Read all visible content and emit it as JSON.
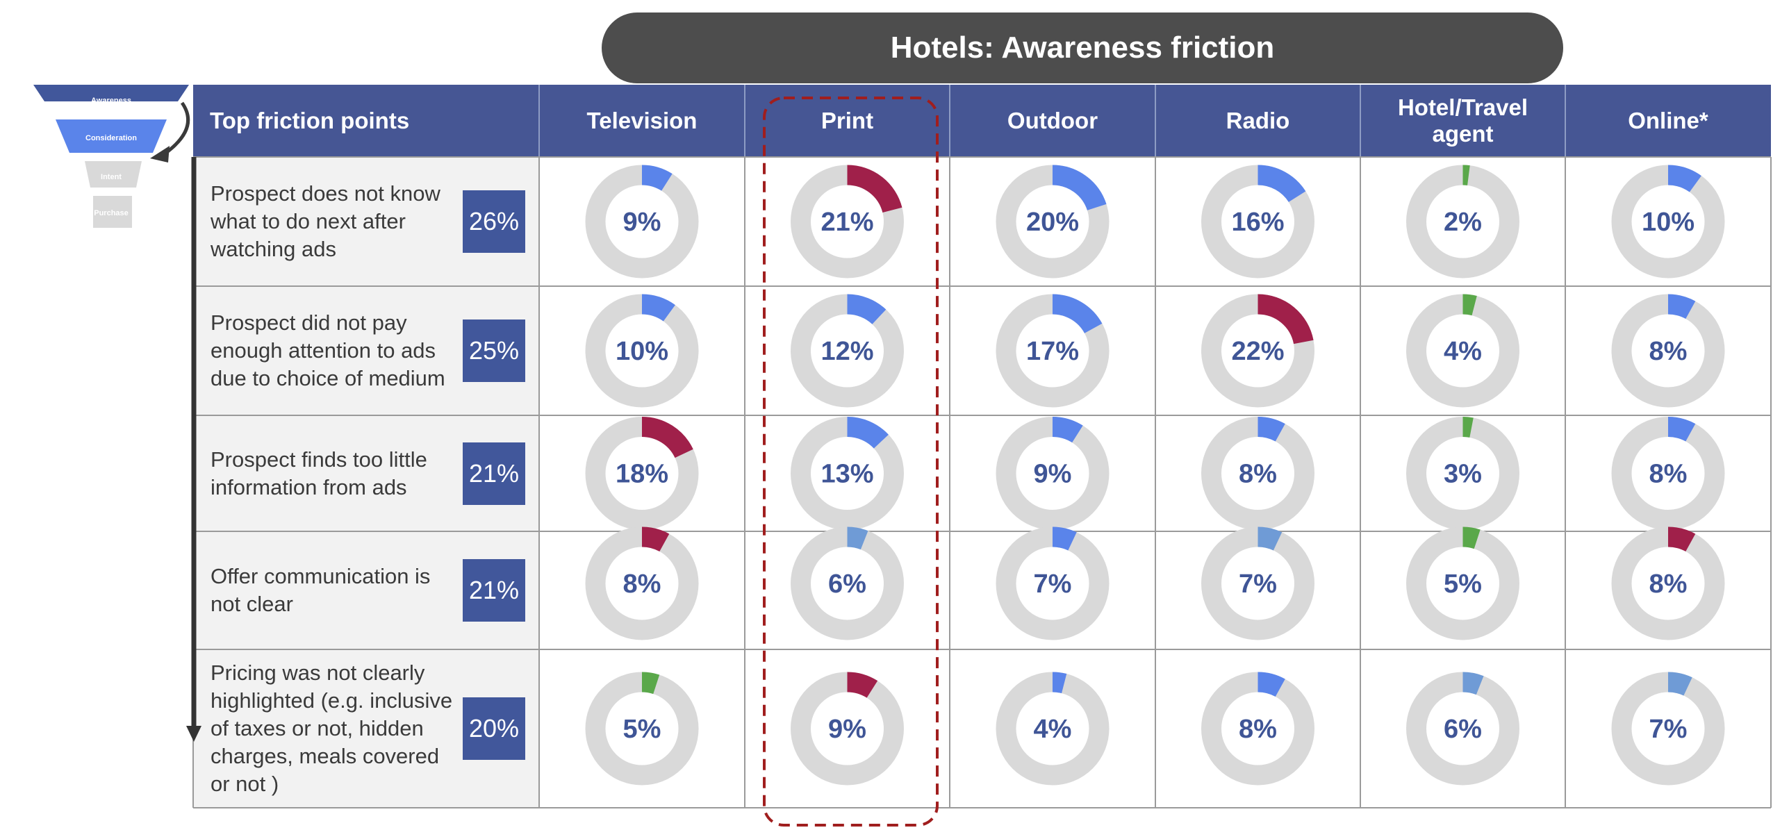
{
  "title": "Hotels: Awareness friction",
  "funnel": {
    "stages": [
      "Awareness",
      "Consideration",
      "Intent",
      "Purchase"
    ],
    "colors": [
      "#41579b",
      "#5a84ea",
      "#d9d9d9",
      "#d9d9d9"
    ]
  },
  "columns": [
    "Top friction points",
    "Television",
    "Print",
    "Outdoor",
    "Radio",
    "Hotel/Travel agent",
    "Online*"
  ],
  "colors": {
    "header_bg": "#465694",
    "first_col_bg": "#f2f2f2",
    "ring_track": "#d9d9d9",
    "blue": "#5a84ea",
    "light_blue": "#6f9bd6",
    "crimson": "#a0204a",
    "green": "#5aa84a",
    "highlight_border": "#a01e1e"
  },
  "chart_data": {
    "type": "table",
    "title": "Hotels: Awareness friction",
    "highlighted_column": "Print",
    "rows": [
      {
        "label": "Prospect does not know what to do next after watching ads",
        "overall": "26%",
        "values": [
          9,
          21,
          20,
          16,
          2,
          10
        ],
        "labels": [
          "9%",
          "21%",
          "20%",
          "16%",
          "2%",
          "10%"
        ],
        "colors": [
          "blue",
          "crimson",
          "blue",
          "blue",
          "green",
          "blue"
        ]
      },
      {
        "label": "Prospect did not pay enough attention to ads due to choice of medium",
        "overall": "25%",
        "values": [
          10,
          12,
          17,
          22,
          4,
          8
        ],
        "labels": [
          "10%",
          "12%",
          "17%",
          "22%",
          "4%",
          "8%"
        ],
        "colors": [
          "blue",
          "blue",
          "blue",
          "crimson",
          "green",
          "blue"
        ]
      },
      {
        "label": "Prospect finds too little information from ads",
        "overall": "21%",
        "values": [
          18,
          13,
          9,
          8,
          3,
          8
        ],
        "labels": [
          "18%",
          "13%",
          "9%",
          "8%",
          "3%",
          "8%"
        ],
        "colors": [
          "crimson",
          "blue",
          "blue",
          "blue",
          "green",
          "blue"
        ]
      },
      {
        "label": "Offer communication is not clear",
        "overall": "21%",
        "values": [
          8,
          6,
          7,
          7,
          5,
          8
        ],
        "labels": [
          "8%",
          "6%",
          "7%",
          "7%",
          "5%",
          "8%"
        ],
        "colors": [
          "crimson",
          "light_blue",
          "blue",
          "light_blue",
          "green",
          "crimson"
        ]
      },
      {
        "label": "Pricing was not clearly highlighted (e.g. inclusive of taxes or not, hidden charges, meals covered or not )",
        "overall": "20%",
        "values": [
          5,
          9,
          4,
          8,
          6,
          7
        ],
        "labels": [
          "5%",
          "9%",
          "4%",
          "8%",
          "6%",
          "7%"
        ],
        "colors": [
          "green",
          "crimson",
          "blue",
          "blue",
          "light_blue",
          "light_blue"
        ]
      }
    ]
  }
}
